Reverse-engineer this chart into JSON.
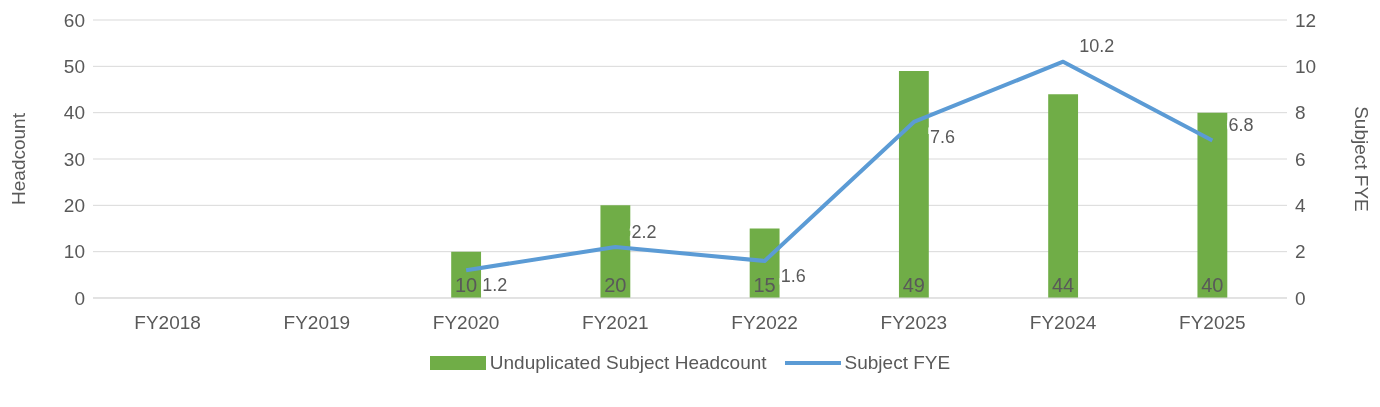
{
  "chart_data": {
    "type": "bar",
    "categories": [
      "FY2018",
      "FY2019",
      "FY2020",
      "FY2021",
      "FY2022",
      "FY2023",
      "FY2024",
      "FY2025"
    ],
    "series": [
      {
        "name": "Unduplicated Subject Headcount",
        "color": "#70ad47",
        "values": [
          null,
          null,
          10,
          20,
          15,
          49,
          44,
          40
        ]
      },
      {
        "name": "Subject FYE",
        "type": "line",
        "axis": "y2",
        "color": "#5b9bd5",
        "values": [
          null,
          null,
          1.2,
          2.2,
          1.6,
          7.6,
          10.2,
          6.8
        ]
      }
    ],
    "ylabel": "Headcount",
    "y2label": "Subject FYE",
    "ylim": [
      0,
      60
    ],
    "yticks": [
      0,
      10,
      20,
      30,
      40,
      50,
      60
    ],
    "y2lim": [
      0,
      12
    ],
    "y2ticks": [
      0,
      2,
      4,
      6,
      8,
      10,
      12
    ],
    "grid": "y",
    "legend": "bottom",
    "data_labels": true
  }
}
